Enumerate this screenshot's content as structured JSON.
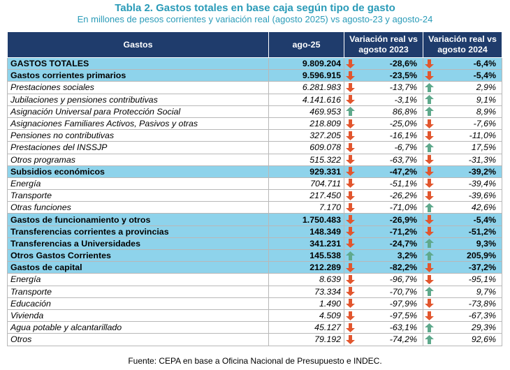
{
  "title": "Tabla 2. Gastos totales en base caja según tipo de gasto",
  "subtitle": "En millones de pesos corrientes y variación real (agosto 2025) vs agosto-23 y agosto-24",
  "headers": {
    "gastos": "Gastos",
    "ago": "ago-25",
    "var23": "Variación real vs agosto 2023",
    "var24": "Variación real vs agosto 2024"
  },
  "colors": {
    "header_bg": "#1f3c6c",
    "highlight_bg": "#8ed3eb",
    "title": "#2a9bb8",
    "down": "#e2562e",
    "up": "#5fa98c"
  },
  "rows": [
    {
      "label": "GASTOS TOTALES",
      "value": "9.809.204",
      "v23": "-28,6%",
      "d23": "down",
      "v24": "-6,4%",
      "d24": "down",
      "style": "hl"
    },
    {
      "label": "Gastos corrientes primarios",
      "value": "9.596.915",
      "v23": "-23,5%",
      "d23": "down",
      "v24": "-5,4%",
      "d24": "down",
      "style": "hl"
    },
    {
      "label": "Prestaciones sociales",
      "value": "6.281.983",
      "v23": "-13,7%",
      "d23": "down",
      "v24": "2,9%",
      "d24": "up",
      "style": "sub"
    },
    {
      "label": "Jubilaciones y pensiones contributivas",
      "value": "4.141.616",
      "v23": "-3,1%",
      "d23": "down",
      "v24": "9,1%",
      "d24": "up",
      "style": "sub"
    },
    {
      "label": "Asignación Universal para Protección Social",
      "value": "469.953",
      "v23": "86,8%",
      "d23": "up",
      "v24": "8,9%",
      "d24": "up",
      "style": "sub"
    },
    {
      "label": "Asignaciones Familiares Activos, Pasivos y otras",
      "value": "218.809",
      "v23": "-25,0%",
      "d23": "down",
      "v24": "-7,6%",
      "d24": "down",
      "style": "sub"
    },
    {
      "label": "Pensiones no contributivas",
      "value": "327.205",
      "v23": "-16,1%",
      "d23": "down",
      "v24": "-11,0%",
      "d24": "down",
      "style": "sub"
    },
    {
      "label": "Prestaciones del INSSJP",
      "value": "609.078",
      "v23": "-6,7%",
      "d23": "down",
      "v24": "17,5%",
      "d24": "up",
      "style": "sub"
    },
    {
      "label": "Otros programas",
      "value": "515.322",
      "v23": "-63,7%",
      "d23": "down",
      "v24": "-31,3%",
      "d24": "down",
      "style": "sub"
    },
    {
      "label": "Subsidios económicos",
      "value": "929.331",
      "v23": "-47,2%",
      "d23": "down",
      "v24": "-39,2%",
      "d24": "down",
      "style": "hl"
    },
    {
      "label": "Energía",
      "value": "704.711",
      "v23": "-51,1%",
      "d23": "down",
      "v24": "-39,4%",
      "d24": "down",
      "style": "sub"
    },
    {
      "label": "Transporte",
      "value": "217.450",
      "v23": "-26,2%",
      "d23": "down",
      "v24": "-39,6%",
      "d24": "down",
      "style": "sub"
    },
    {
      "label": "Otras funciones",
      "value": "7.170",
      "v23": "-71,0%",
      "d23": "down",
      "v24": "42,6%",
      "d24": "up",
      "style": "sub"
    },
    {
      "label": "Gastos de funcionamiento y otros",
      "value": "1.750.483",
      "v23": "-26,9%",
      "d23": "down",
      "v24": "-5,4%",
      "d24": "down",
      "style": "hl"
    },
    {
      "label": "Transferencias corrientes a provincias",
      "value": "148.349",
      "v23": "-71,2%",
      "d23": "down",
      "v24": "-51,2%",
      "d24": "down",
      "style": "hl"
    },
    {
      "label": "Transferencias a Universidades",
      "value": "341.231",
      "v23": "-24,7%",
      "d23": "down",
      "v24": "9,3%",
      "d24": "up",
      "style": "hl"
    },
    {
      "label": "Otros Gastos Corrientes",
      "value": "145.538",
      "v23": "3,2%",
      "d23": "up",
      "v24": "205,9%",
      "d24": "up",
      "style": "hl"
    },
    {
      "label": "Gastos de capital",
      "value": "212.289",
      "v23": "-82,2%",
      "d23": "down",
      "v24": "-37,2%",
      "d24": "down",
      "style": "hl"
    },
    {
      "label": "Energía",
      "value": "8.639",
      "v23": "-96,7%",
      "d23": "down",
      "v24": "-95,1%",
      "d24": "down",
      "style": "sub"
    },
    {
      "label": "Transporte",
      "value": "73.334",
      "v23": "-70,7%",
      "d23": "down",
      "v24": "9,7%",
      "d24": "up",
      "style": "sub"
    },
    {
      "label": "Educación",
      "value": "1.490",
      "v23": "-97,9%",
      "d23": "down",
      "v24": "-73,8%",
      "d24": "down",
      "style": "sub"
    },
    {
      "label": "Vivienda",
      "value": "4.509",
      "v23": "-97,5%",
      "d23": "down",
      "v24": "-67,3%",
      "d24": "down",
      "style": "sub"
    },
    {
      "label": "Agua potable y alcantarillado",
      "value": "45.127",
      "v23": "-63,1%",
      "d23": "down",
      "v24": "29,3%",
      "d24": "up",
      "style": "sub"
    },
    {
      "label": "Otros",
      "value": "79.192",
      "v23": "-74,2%",
      "d23": "down",
      "v24": "92,6%",
      "d24": "up",
      "style": "sub"
    }
  ],
  "source": "Fuente: CEPA en base a Oficina Nacional de Presupuesto e INDEC."
}
